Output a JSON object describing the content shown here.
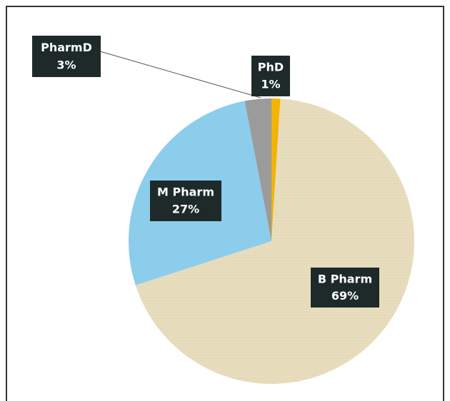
{
  "chart_data": {
    "type": "pie",
    "categories": [
      "PhD",
      "B Pharm",
      "M Pharm",
      "PharmD"
    ],
    "values": [
      1,
      69,
      27,
      3
    ],
    "value_labels": [
      "1%",
      "69%",
      "27%",
      "3%"
    ],
    "colors": [
      "#f3b300",
      "#ede3c4",
      "#8ccdec",
      "#9b9b9b"
    ]
  }
}
